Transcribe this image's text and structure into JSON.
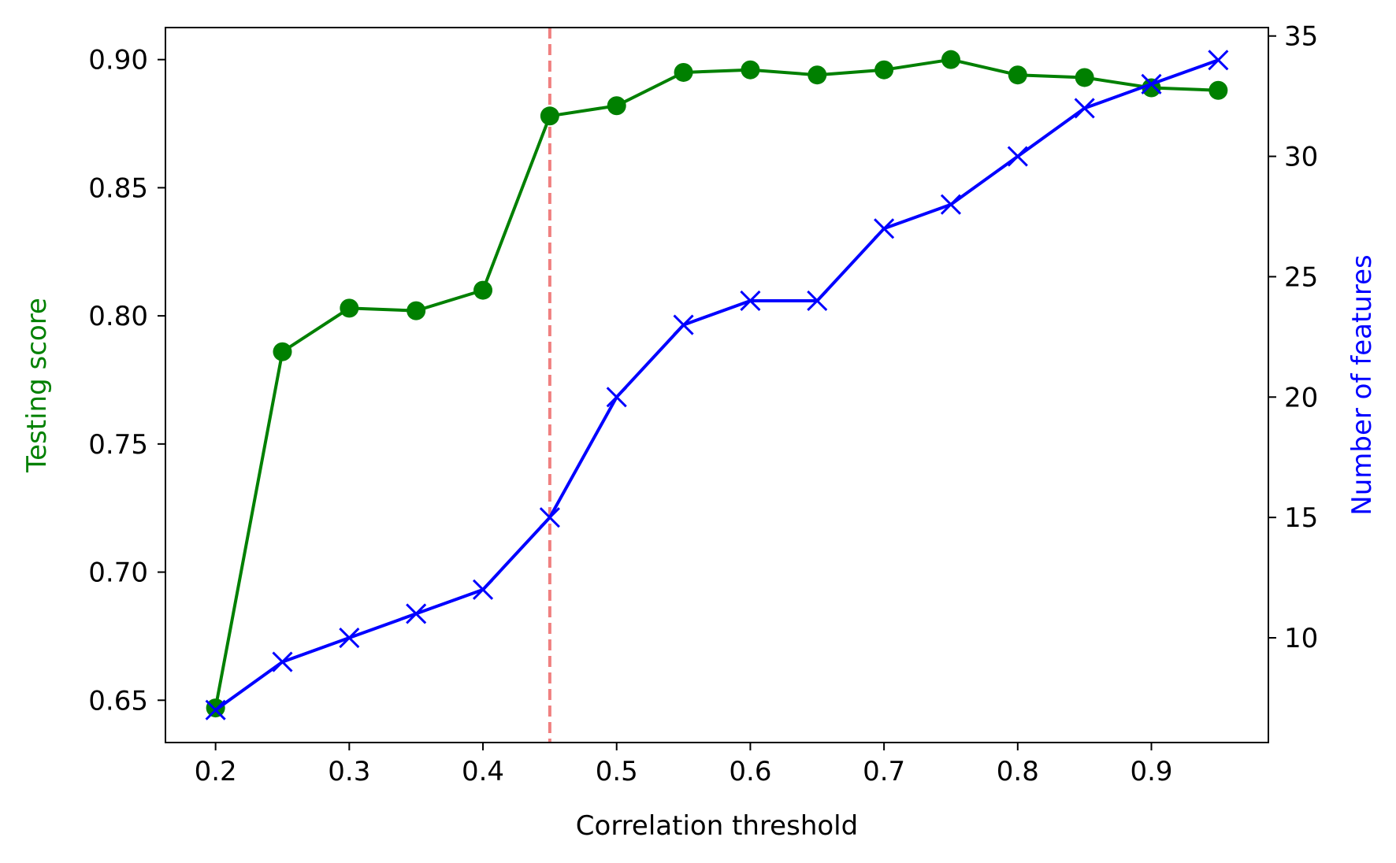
{
  "chart_data": {
    "type": "line",
    "xlabel": "Correlation threshold",
    "ylabel_left": "Testing score",
    "ylabel_right": "Number of features",
    "x": [
      0.2,
      0.25,
      0.3,
      0.35,
      0.4,
      0.45,
      0.5,
      0.55,
      0.6,
      0.65,
      0.7,
      0.75,
      0.8,
      0.85,
      0.9,
      0.95
    ],
    "x_ticks": [
      "0.2",
      "0.3",
      "0.4",
      "0.5",
      "0.6",
      "0.7",
      "0.8",
      "0.9"
    ],
    "y_left_ticks": [
      "0.65",
      "0.70",
      "0.75",
      "0.80",
      "0.85",
      "0.90"
    ],
    "y_right_ticks": [
      "10",
      "15",
      "20",
      "25",
      "30",
      "35"
    ],
    "xlim": [
      0.1625,
      0.9875
    ],
    "ylim_left": [
      0.6335,
      0.9125
    ],
    "ylim_right": [
      5.65,
      35.35
    ],
    "grid": false,
    "series": [
      {
        "axis": "left",
        "color": "#008000",
        "marker": "circle",
        "values": [
          0.647,
          0.786,
          0.803,
          0.802,
          0.81,
          0.878,
          0.882,
          0.895,
          0.896,
          0.894,
          0.896,
          0.9,
          0.894,
          0.893,
          0.889,
          0.888
        ]
      },
      {
        "axis": "right",
        "color": "#0000ff",
        "marker": "x",
        "values": [
          7,
          9,
          10,
          11,
          12,
          15,
          20,
          23,
          24,
          24,
          27,
          28,
          30,
          32,
          33,
          34
        ]
      }
    ],
    "annotations": [
      {
        "type": "vline",
        "x": 0.45,
        "color": "#f08080",
        "style": "dashed"
      }
    ]
  }
}
